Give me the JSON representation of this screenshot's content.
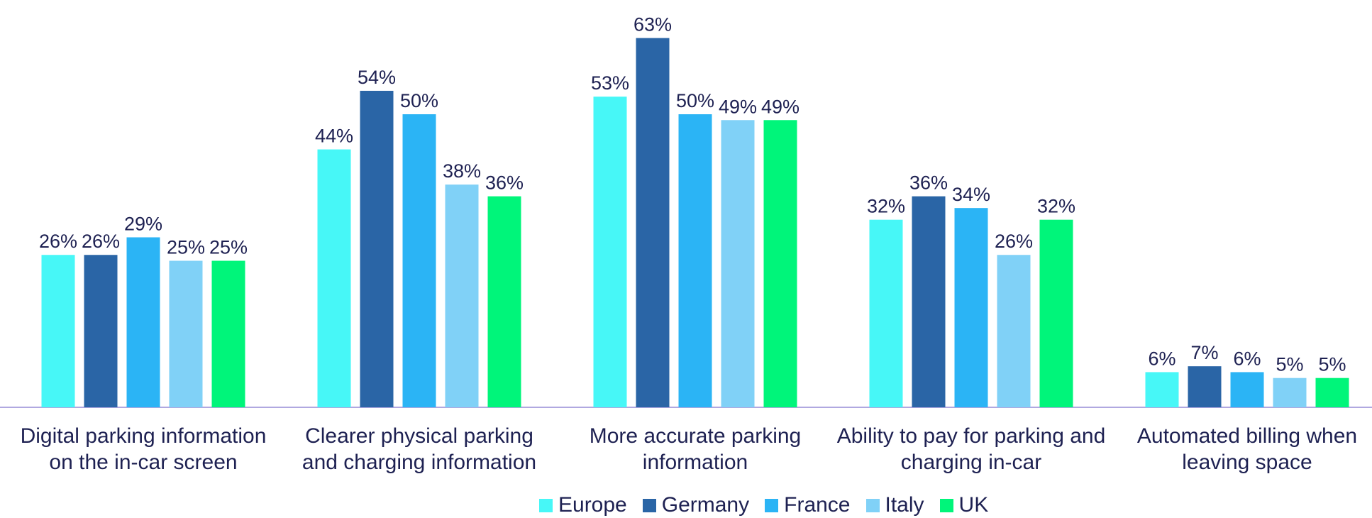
{
  "chart_data": {
    "type": "bar",
    "categories": [
      "Digital parking information on the in-car screen",
      "Clearer physical parking and charging information",
      "More accurate parking information",
      "Ability to pay for parking and charging in-car",
      "Automated billing when leaving space"
    ],
    "series": [
      {
        "name": "Europe",
        "color": "#47f7f7",
        "values": [
          26,
          44,
          53,
          32,
          6
        ],
        "value_labels": [
          "26%",
          "44%",
          "53%",
          "32%",
          "6%"
        ]
      },
      {
        "name": "Germany",
        "color": "#2a65a6",
        "values": [
          26,
          54,
          63,
          36,
          7
        ],
        "value_labels": [
          "26%",
          "54%",
          "63%",
          "36%",
          "7%"
        ]
      },
      {
        "name": "France",
        "color": "#2bb4f5",
        "values": [
          29,
          50,
          50,
          34,
          6
        ],
        "value_labels": [
          "29%",
          "50%",
          "50%",
          "34%",
          "6%"
        ]
      },
      {
        "name": "Italy",
        "color": "#80d1f7",
        "values": [
          25,
          38,
          49,
          26,
          5
        ],
        "value_labels": [
          "25%",
          "38%",
          "49%",
          "26%",
          "5%"
        ]
      },
      {
        "name": "UK",
        "color": "#00f57a",
        "values": [
          25,
          36,
          49,
          32,
          5
        ],
        "value_labels": [
          "25%",
          "36%",
          "49%",
          "32%",
          "5%"
        ]
      }
    ]
  }
}
